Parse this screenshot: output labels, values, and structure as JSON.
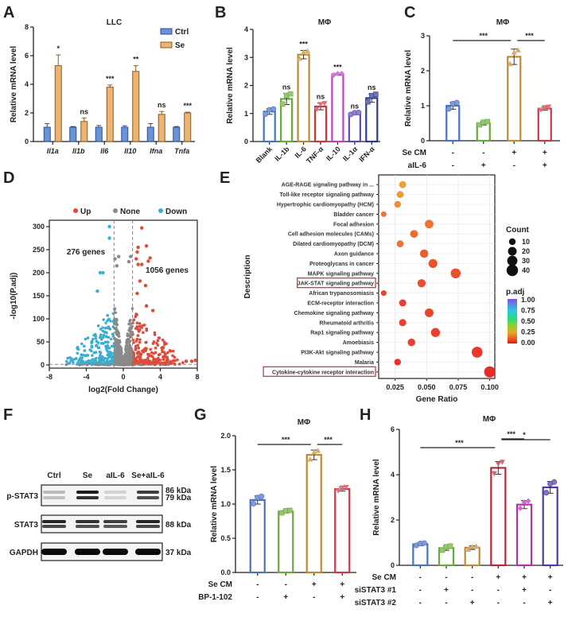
{
  "panel_labels": [
    "A",
    "B",
    "C",
    "D",
    "E",
    "F",
    "G",
    "H"
  ],
  "chart_data": [
    {
      "id": "A",
      "type": "bar",
      "title": "LLC",
      "ylabel": "Relative mRNA level",
      "xlabel": "",
      "ylim": [
        0,
        8
      ],
      "yticks": [
        0,
        2,
        4,
        6,
        8
      ],
      "categories": [
        "Il1a",
        "Il1b",
        "Il6",
        "Il10",
        "Ifna",
        "Tnfa"
      ],
      "series": [
        {
          "name": "Ctrl",
          "color": "#4f7fd0",
          "values": [
            1.0,
            1.0,
            1.0,
            1.0,
            1.0,
            1.0
          ],
          "errors": [
            0.25,
            0.05,
            0.12,
            0.1,
            0.25,
            0.05
          ]
        },
        {
          "name": "Se",
          "color": "#e8a858",
          "values": [
            5.3,
            1.4,
            3.8,
            4.9,
            1.9,
            2.0
          ],
          "errors": [
            0.75,
            0.25,
            0.15,
            0.4,
            0.2,
            0.05
          ]
        }
      ],
      "significance": [
        "*",
        "ns",
        "***",
        "**",
        "ns",
        "***"
      ],
      "legend": "top-right"
    },
    {
      "id": "B",
      "type": "bar",
      "title": "MΦ",
      "ylabel": "Relative mRNA level",
      "ylim": [
        0,
        4
      ],
      "yticks": [
        0,
        1,
        2,
        3,
        4
      ],
      "categories": [
        "Blank",
        "IL-1b",
        "IL-6",
        "TNF-α",
        "IL-10",
        "IL-1α",
        "IFN-α"
      ],
      "values": [
        1.07,
        1.52,
        3.1,
        1.25,
        2.4,
        1.0,
        1.55
      ],
      "errors": [
        0.1,
        0.2,
        0.15,
        0.12,
        0.03,
        0.04,
        0.15
      ],
      "colors": [
        "#4a72c0",
        "#6aaa3a",
        "#c08a30",
        "#c83838",
        "#c040c0",
        "#6048b8",
        "#2c3c90"
      ],
      "significance": [
        "",
        "ns",
        "***",
        "ns",
        "***",
        "ns",
        "ns"
      ]
    },
    {
      "id": "C",
      "type": "bar",
      "title": "MΦ",
      "ylabel": "Relative mRNA level",
      "ylim": [
        0,
        3
      ],
      "yticks": [
        0,
        1,
        2,
        3
      ],
      "categories": [
        "1",
        "2",
        "3",
        "4"
      ],
      "values": [
        1.0,
        0.5,
        2.4,
        0.92
      ],
      "errors": [
        0.1,
        0.05,
        0.22,
        0.05
      ],
      "colors": [
        "#4a72c0",
        "#6aaa3a",
        "#c08a30",
        "#c83848"
      ],
      "conditions": [
        {
          "label": "Se CM",
          "values": [
            "-",
            "-",
            "+",
            "+"
          ]
        },
        {
          "label": "aIL-6",
          "values": [
            "-",
            "+",
            "-",
            "+"
          ]
        }
      ],
      "comparisons": [
        {
          "from": 0,
          "to": 2,
          "sig": "***"
        },
        {
          "from": 2,
          "to": 3,
          "sig": "***"
        }
      ]
    },
    {
      "id": "D",
      "type": "scatter",
      "title": "",
      "xlabel": "log2(Fold Change)",
      "ylabel": "-log10(P.adj)",
      "xlim": [
        -8,
        8
      ],
      "ylim": [
        0,
        300
      ],
      "xticks": [
        -8,
        -4,
        0,
        4,
        8
      ],
      "yticks": [
        0,
        50,
        100,
        150,
        200,
        250,
        300
      ],
      "legend": [
        {
          "name": "Up",
          "color": "#e04a3a"
        },
        {
          "name": "None",
          "color": "#8a8a8a"
        },
        {
          "name": "Down",
          "color": "#3aaed0"
        }
      ],
      "thresholds": {
        "fc": 1,
        "p": 1.3
      },
      "annotations": [
        "276 genes",
        "1056 genes"
      ],
      "highlight_points": {
        "down": [
          [
            -1.5,
            300
          ],
          [
            -1.5,
            275
          ],
          [
            -2.5,
            200
          ],
          [
            -2.2,
            200
          ],
          [
            -2.8,
            160
          ],
          [
            -3.4,
            50
          ],
          [
            -2.9,
            42
          ]
        ],
        "up": [
          [
            2.0,
            297
          ],
          [
            2.5,
            258
          ],
          [
            1.6,
            255
          ],
          [
            1.5,
            245
          ],
          [
            2.9,
            232
          ],
          [
            2.7,
            225
          ],
          [
            1.4,
            230
          ],
          [
            1.6,
            218
          ],
          [
            2.0,
            218
          ],
          [
            2.4,
            172
          ],
          [
            1.8,
            182
          ],
          [
            1.5,
            155
          ],
          [
            3.2,
            118
          ],
          [
            2.5,
            128
          ],
          [
            4.3,
            38
          ],
          [
            6.8,
            8
          ],
          [
            7.4,
            8
          ],
          [
            7.8,
            10
          ]
        ],
        "none": [
          [
            -0.5,
            235
          ],
          [
            0.8,
            235
          ],
          [
            0.6,
            224
          ],
          [
            -0.9,
            230
          ],
          [
            -0.7,
            215
          ]
        ]
      }
    },
    {
      "id": "E",
      "type": "scatter",
      "title": "",
      "xlabel": "Gene Ratio",
      "ylabel": "Description",
      "xlim": [
        0.012,
        0.104
      ],
      "xticks": [
        0.025,
        0.05,
        0.075,
        0.1
      ],
      "xtick_labels": [
        "0.025",
        "0.050",
        "0.075",
        "0.100"
      ],
      "categories": [
        "AGE-RAGE signaling pathway in ...",
        "Toll-like receptor signaling pathway",
        "Hypertrophic cardiomyopathy (HCM)",
        "Bladder cancer",
        "Focal adhesion",
        "Cell adhesion molecules (CAMs)",
        "Dilated cardiomyopathy (DCM)",
        "Axon guidance",
        "Proteoglycans in cancer",
        "MAPK signaling pathway",
        "JAK-STAT signaling pathway",
        "African trypanosomiasis",
        "ECM-receptor interaction",
        "Chemokine signaling pathway",
        "Rheumatoid arthritis",
        "Rap1 signaling pathway",
        "Amoebiasis",
        "PI3K-Akt signaling pathway",
        "Malaria",
        "Cytokine-cytokine receptor interaction"
      ],
      "highlighted": [
        "JAK-STAT signaling pathway",
        "Cytokine-cytokine receptor interaction"
      ],
      "gene_ratio": [
        0.031,
        0.029,
        0.027,
        0.016,
        0.052,
        0.04,
        0.029,
        0.048,
        0.055,
        0.073,
        0.046,
        0.016,
        0.031,
        0.052,
        0.031,
        0.057,
        0.038,
        0.09,
        0.027,
        0.1
      ],
      "count": [
        12,
        11,
        10,
        6,
        20,
        15,
        11,
        18,
        21,
        28,
        17,
        6,
        12,
        20,
        12,
        22,
        14,
        35,
        10,
        38
      ],
      "p_adj": [
        0.22,
        0.2,
        0.18,
        0.12,
        0.12,
        0.1,
        0.12,
        0.08,
        0.06,
        0.06,
        0.05,
        0.04,
        0.03,
        0.04,
        0.03,
        0.03,
        0.03,
        0.02,
        0.01,
        0.0
      ],
      "legend_count": {
        "title": "Count",
        "values": [
          10,
          20,
          30,
          40
        ]
      },
      "legend_color": {
        "title": "p.adj",
        "ticks": [
          "1.00",
          "0.75",
          "0.50",
          "0.25",
          "0.00"
        ]
      }
    },
    {
      "id": "G",
      "type": "bar",
      "title": "MΦ",
      "ylabel": "Relative mRNA level",
      "ylim": [
        0,
        2.0
      ],
      "yticks": [
        0.0,
        0.5,
        1.0,
        1.5,
        2.0
      ],
      "ytick_labels": [
        "0.0",
        "0.5",
        "1.0",
        "1.5",
        "2.0"
      ],
      "categories": [
        "1",
        "2",
        "3",
        "4"
      ],
      "values": [
        1.06,
        0.89,
        1.72,
        1.22
      ],
      "errors": [
        0.06,
        0.02,
        0.07,
        0.03
      ],
      "colors": [
        "#4a72c0",
        "#6aaa3a",
        "#c08a30",
        "#c83848"
      ],
      "conditions": [
        {
          "label": "Se CM",
          "values": [
            "-",
            "-",
            "+",
            "+"
          ]
        },
        {
          "label": "BP-1-102",
          "values": [
            "-",
            "+",
            "-",
            "+"
          ]
        }
      ],
      "comparisons": [
        {
          "from": 0,
          "to": 2,
          "sig": "***"
        },
        {
          "from": 2,
          "to": 3,
          "sig": "***"
        }
      ]
    },
    {
      "id": "H",
      "type": "bar",
      "title": "MΦ",
      "ylabel": "Relative mRNA level",
      "ylim": [
        0,
        6
      ],
      "yticks": [
        0,
        2,
        4,
        6
      ],
      "categories": [
        "1",
        "2",
        "3",
        "4",
        "5",
        "6"
      ],
      "values": [
        0.93,
        0.76,
        0.78,
        4.3,
        2.68,
        3.44
      ],
      "errors": [
        0.06,
        0.1,
        0.08,
        0.28,
        0.18,
        0.26
      ],
      "colors": [
        "#4a72c0",
        "#6aaa3a",
        "#c08a30",
        "#b82838",
        "#b030b0",
        "#5038a8"
      ],
      "conditions": [
        {
          "label": "Se CM",
          "values": [
            "-",
            "-",
            "-",
            "+",
            "+",
            "+"
          ]
        },
        {
          "label": "siSTAT3 #1",
          "values": [
            "-",
            "+",
            "-",
            "-",
            "+",
            "-"
          ]
        },
        {
          "label": "siSTAT3 #2",
          "values": [
            "-",
            "-",
            "+",
            "-",
            "-",
            "+"
          ]
        }
      ],
      "comparisons": [
        {
          "from": 0,
          "to": 3,
          "sig": "***"
        },
        {
          "from": 3,
          "to": 4,
          "sig": "***"
        },
        {
          "from": 3,
          "to": 5,
          "sig": "*"
        }
      ]
    }
  ],
  "western_blot": {
    "lanes": [
      "Ctrl",
      "Se",
      "aIL-6",
      "Se+aIL-6"
    ],
    "rows": [
      {
        "protein": "p-STAT3",
        "sizes": [
          "86 kDa",
          "79 kDa"
        ],
        "intensity": [
          0.25,
          0.95,
          0.15,
          0.8
        ]
      },
      {
        "protein": "STAT3",
        "sizes": [
          "88 kDa"
        ],
        "intensity": [
          0.9,
          0.85,
          0.8,
          0.9
        ]
      },
      {
        "protein": "GAPDH",
        "sizes": [
          "37 kDa"
        ],
        "intensity": [
          1.0,
          1.0,
          1.0,
          1.0
        ]
      }
    ]
  }
}
